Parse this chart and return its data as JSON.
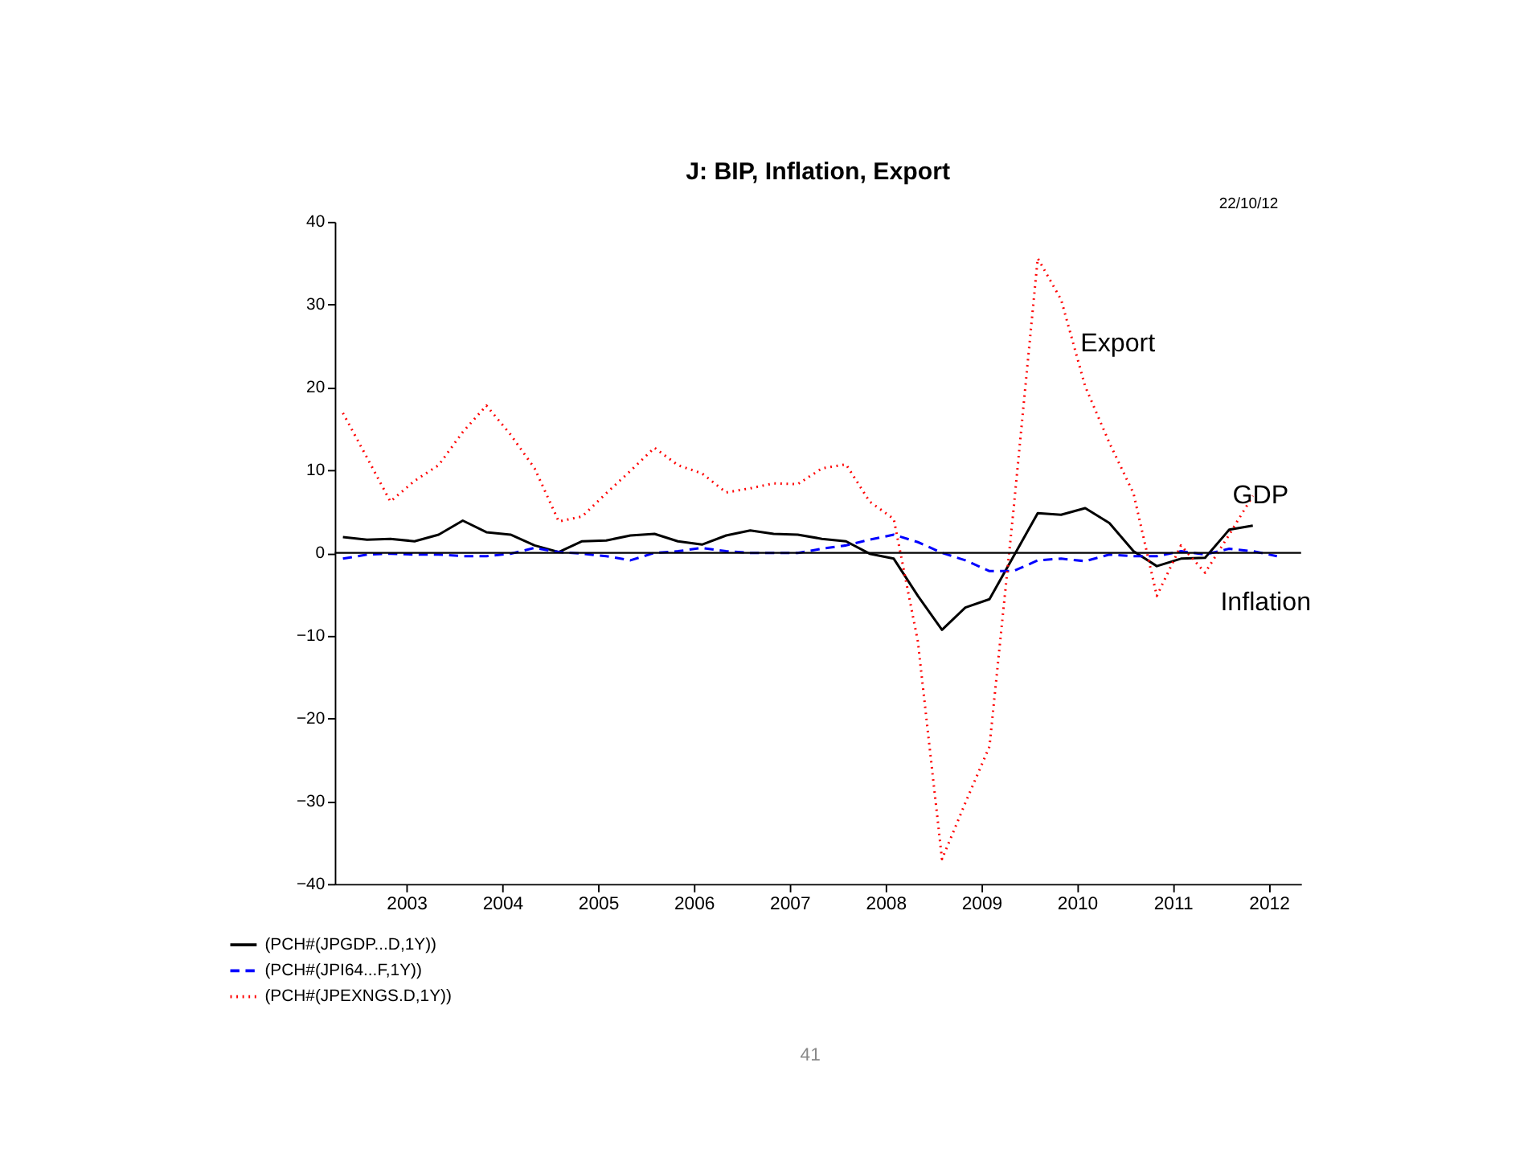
{
  "chart_data": {
    "type": "line",
    "title": "J: BIP, Inflation, Export",
    "x": [
      "2002-11",
      "2003-02",
      "2003-05",
      "2003-08",
      "2003-11",
      "2004-02",
      "2004-05",
      "2004-08",
      "2004-11",
      "2005-02",
      "2005-05",
      "2005-08",
      "2005-11",
      "2006-02",
      "2006-05",
      "2006-08",
      "2006-11",
      "2007-02",
      "2007-05",
      "2007-08",
      "2007-11",
      "2008-02",
      "2008-05",
      "2008-08",
      "2008-11",
      "2009-02",
      "2009-05",
      "2009-08",
      "2009-11",
      "2010-02",
      "2010-05",
      "2010-08",
      "2010-11",
      "2011-02",
      "2011-05",
      "2011-08",
      "2011-11",
      "2012-02",
      "2012-05",
      "2012-08"
    ],
    "series": [
      {
        "name": "(PCH#(JPGDP...D,1Y))",
        "color": "#000000",
        "line_style": "solid",
        "values": [
          1.9,
          1.6,
          1.7,
          1.4,
          2.2,
          3.9,
          2.5,
          2.2,
          0.9,
          0.1,
          1.4,
          1.5,
          2.1,
          2.3,
          1.4,
          1.0,
          2.1,
          2.7,
          2.3,
          2.2,
          1.7,
          1.4,
          -0.1,
          -0.7,
          -5.2,
          -9.3,
          -6.6,
          -5.6,
          -0.4,
          4.8,
          4.6,
          5.4,
          3.6,
          0.2,
          -1.6,
          -0.7,
          -0.6,
          2.8,
          3.3,
          null
        ]
      },
      {
        "name": "(PCH#(JPI64...F,1Y))",
        "color": "#0000ff",
        "line_style": "dashed",
        "values": [
          -0.7,
          -0.2,
          -0.1,
          -0.2,
          -0.2,
          -0.4,
          -0.4,
          -0.1,
          0.6,
          0.1,
          -0.1,
          -0.4,
          -0.9,
          0,
          0.2,
          0.6,
          0.2,
          0,
          0,
          0,
          0.5,
          0.9,
          1.6,
          2.2,
          1.3,
          0,
          -0.9,
          -2.2,
          -2.2,
          -0.9,
          -0.7,
          -1.0,
          -0.2,
          -0.4,
          -0.4,
          0.2,
          -0.2,
          0.5,
          0.2,
          -0.4
        ]
      },
      {
        "name": "(PCH#(JPEXNGS.D,1Y))",
        "color": "#ff0000",
        "line_style": "dotted",
        "values": [
          16.9,
          11.5,
          6.2,
          8.7,
          10.6,
          14.6,
          17.8,
          14.3,
          10.2,
          3.8,
          4.4,
          7.2,
          9.9,
          12.7,
          10.6,
          9.6,
          7.3,
          7.8,
          8.4,
          8.3,
          10.2,
          10.7,
          6.2,
          4.1,
          -10.7,
          -37.0,
          -30.2,
          -23.4,
          5.3,
          35.6,
          30.6,
          20.1,
          13.3,
          7.2,
          -5.2,
          0.9,
          -2.4,
          2.2,
          6.9,
          null
        ]
      }
    ],
    "xlim": [
      "2002-10",
      "2012-11"
    ],
    "xticks": [
      {
        "value": "2003-07",
        "label": "2003"
      },
      {
        "value": "2004-07",
        "label": "2004"
      },
      {
        "value": "2005-07",
        "label": "2005"
      },
      {
        "value": "2006-07",
        "label": "2006"
      },
      {
        "value": "2007-07",
        "label": "2007"
      },
      {
        "value": "2008-07",
        "label": "2008"
      },
      {
        "value": "2009-07",
        "label": "2009"
      },
      {
        "value": "2010-07",
        "label": "2010"
      },
      {
        "value": "2011-07",
        "label": "2011"
      },
      {
        "value": "2012-07",
        "label": "2012"
      }
    ],
    "ylim": [
      -40,
      40
    ],
    "yticks": [
      -40,
      -30,
      -20,
      -10,
      0,
      10,
      20,
      30,
      40
    ],
    "ref_lines": [
      {
        "axis": "y",
        "value": 0,
        "label": null,
        "color": "#000000",
        "line_style": "solid"
      }
    ],
    "annotations": [
      "Export",
      "GDP",
      "Inflation",
      "22/10/12",
      "41"
    ],
    "grid": false,
    "legend": "bottom left",
    "marker": "none"
  }
}
